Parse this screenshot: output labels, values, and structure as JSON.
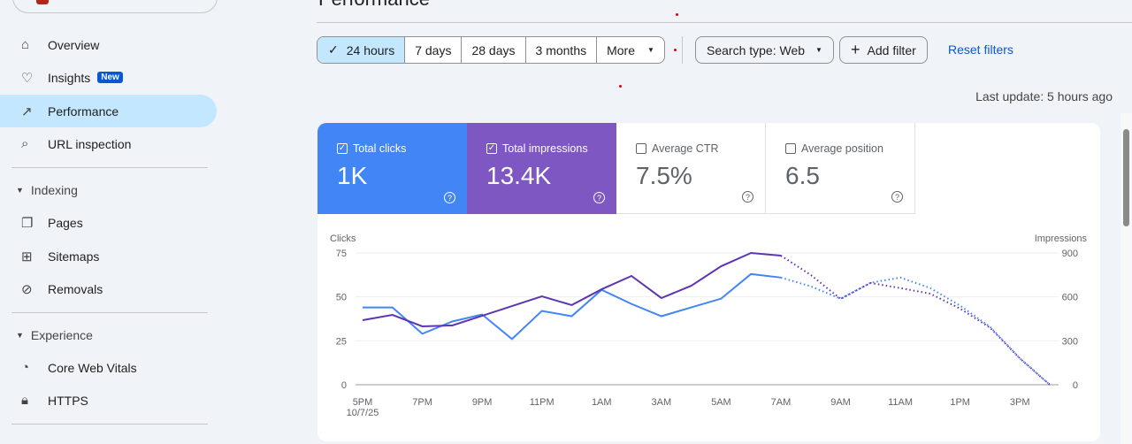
{
  "header": {
    "title": "Performance"
  },
  "sidebar": {
    "items": [
      {
        "label": "Overview",
        "icon": "home-icon"
      },
      {
        "label": "Insights",
        "icon": "lightbulb-icon",
        "badge": "New"
      },
      {
        "label": "Performance",
        "icon": "trending-up-icon",
        "active": true
      },
      {
        "label": "URL inspection",
        "icon": "search-icon"
      }
    ],
    "sections": [
      {
        "label": "Indexing",
        "items": [
          {
            "label": "Pages",
            "icon": "pages-icon"
          },
          {
            "label": "Sitemaps",
            "icon": "sitemap-icon"
          },
          {
            "label": "Removals",
            "icon": "eye-off-icon"
          }
        ]
      },
      {
        "label": "Experience",
        "items": [
          {
            "label": "Core Web Vitals",
            "icon": "gauge-icon"
          },
          {
            "label": "HTTPS",
            "icon": "lock-icon"
          }
        ]
      }
    ]
  },
  "filters": {
    "ranges": [
      "24 hours",
      "7 days",
      "28 days",
      "3 months",
      "More"
    ],
    "selected": "24 hours",
    "search_type": "Search type: Web",
    "add_filter": "Add filter",
    "reset": "Reset filters",
    "last_update": "Last update: 5 hours ago"
  },
  "metrics": [
    {
      "label": "Total clicks",
      "value": "1K",
      "checked": true,
      "color": "#4285f4"
    },
    {
      "label": "Total impressions",
      "value": "13.4K",
      "checked": true,
      "color": "#7e57c2"
    },
    {
      "label": "Average CTR",
      "value": "7.5%",
      "checked": false
    },
    {
      "label": "Average position",
      "value": "6.5",
      "checked": false
    }
  ],
  "chart_data": {
    "type": "line",
    "x": [
      "5PM",
      "6PM",
      "7PM",
      "8PM",
      "9PM",
      "10PM",
      "11PM",
      "12AM",
      "1AM",
      "2AM",
      "3AM",
      "4AM",
      "5AM",
      "6AM",
      "7AM",
      "8AM",
      "9AM",
      "10AM",
      "11AM",
      "12PM",
      "1PM",
      "2PM",
      "3PM",
      "4PM"
    ],
    "x_ticks": [
      "5PM",
      "7PM",
      "9PM",
      "11PM",
      "1AM",
      "3AM",
      "5AM",
      "7AM",
      "9AM",
      "11AM",
      "1PM",
      "3PM"
    ],
    "x_date": "10/7/25",
    "ylabel_left": "Clicks",
    "ylabel_right": "Impressions",
    "y_left_ticks": [
      0,
      25,
      50,
      75
    ],
    "y_right_ticks": [
      0,
      300,
      600,
      900
    ],
    "ylim_left": [
      0,
      75
    ],
    "ylim_right": [
      0,
      900
    ],
    "solid_until": "7AM",
    "series": [
      {
        "name": "Clicks",
        "axis": "left",
        "color": "#4285f4",
        "values": [
          44,
          44,
          29,
          36,
          40,
          26,
          42,
          39,
          54,
          46,
          39,
          44,
          49,
          63,
          61,
          56,
          49,
          58,
          61,
          55,
          45,
          33,
          15,
          0
        ]
      },
      {
        "name": "Impressions",
        "axis": "right",
        "color": "#5e35b1",
        "values": [
          441,
          477,
          399,
          405,
          471,
          537,
          604,
          544,
          652,
          743,
          592,
          676,
          809,
          900,
          882,
          750,
          586,
          695,
          660,
          622,
          520,
          390,
          180,
          0
        ]
      }
    ]
  }
}
